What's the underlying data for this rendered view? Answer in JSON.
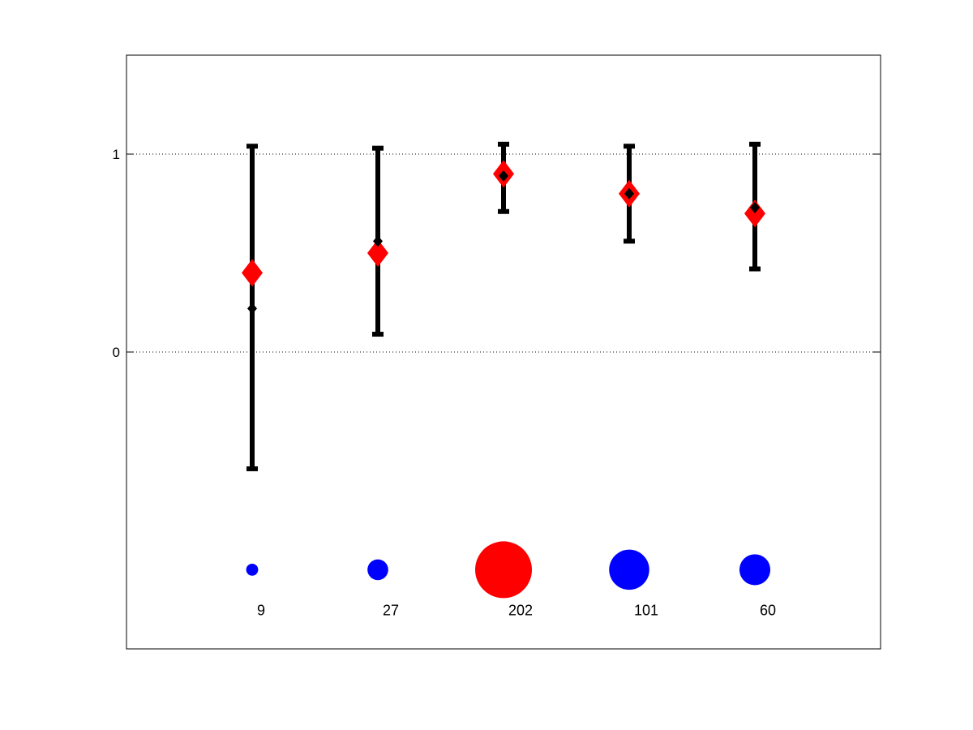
{
  "chart_data": {
    "type": "scatter",
    "title": "",
    "xlabel": "",
    "ylabel": "",
    "xlim": [
      0,
      6
    ],
    "ylim": [
      -1.5,
      1.5
    ],
    "x": [
      1,
      2,
      3,
      4,
      5
    ],
    "y_ticks": [
      0,
      1
    ],
    "y_tick_labels": [
      "0",
      "1"
    ],
    "grid": "dotted lines at y ticks",
    "legend": "none",
    "series": [
      {
        "kind": "reference",
        "marker": "red-diamond",
        "color": "#ff0000",
        "values": [
          0.4,
          0.5,
          0.9,
          0.8,
          0.7
        ]
      },
      {
        "kind": "estimate",
        "marker": "black-diamond",
        "color": "#000000",
        "values": [
          0.22,
          0.56,
          0.89,
          0.8,
          0.73
        ],
        "error_low": [
          -0.59,
          0.09,
          0.71,
          0.56,
          0.42
        ],
        "error_high": [
          1.04,
          1.03,
          1.05,
          1.04,
          1.05
        ]
      }
    ],
    "counts": {
      "y_level": -1.1,
      "values": [
        9,
        27,
        202,
        101,
        60
      ],
      "labels": [
        "9",
        "27",
        "202",
        "101",
        "60"
      ],
      "colors": [
        "#0000ff",
        "#0000ff",
        "#ff0000",
        "#0000ff",
        "#0000ff"
      ]
    }
  }
}
